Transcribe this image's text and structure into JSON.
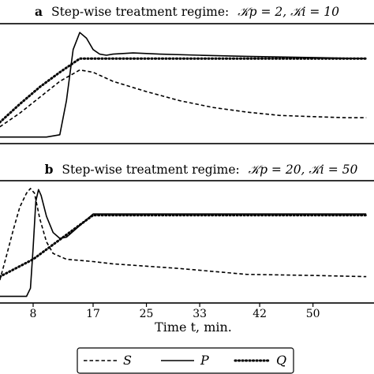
{
  "chart_data": [
    {
      "type": "line",
      "panel": "a",
      "title_prefix": "Step-wise treatment regime:",
      "title_params": "𝒦p = 2, 𝒦i = 10",
      "xlim": [
        3,
        58
      ],
      "ylim": [
        0,
        1
      ],
      "series": [
        {
          "name": "S",
          "style": "dashed",
          "x": [
            3,
            6,
            9,
            12,
            15,
            17,
            20,
            25,
            30,
            35,
            40,
            45,
            50,
            55,
            58
          ],
          "y": [
            0.12,
            0.24,
            0.38,
            0.52,
            0.62,
            0.6,
            0.52,
            0.43,
            0.35,
            0.29,
            0.25,
            0.22,
            0.21,
            0.2,
            0.2
          ]
        },
        {
          "name": "P",
          "style": "solid",
          "x": [
            3,
            10,
            12,
            13,
            14,
            15,
            16,
            17,
            18,
            19,
            20,
            23,
            27,
            33,
            40,
            50,
            58
          ],
          "y": [
            0.03,
            0.03,
            0.05,
            0.35,
            0.8,
            0.95,
            0.9,
            0.8,
            0.76,
            0.75,
            0.76,
            0.77,
            0.76,
            0.75,
            0.74,
            0.73,
            0.72
          ]
        },
        {
          "name": "Q",
          "style": "dotted",
          "x": [
            3,
            6,
            9,
            12,
            15,
            17,
            20,
            30,
            40,
            50,
            58
          ],
          "y": [
            0.16,
            0.32,
            0.47,
            0.6,
            0.72,
            0.72,
            0.72,
            0.72,
            0.72,
            0.72,
            0.72
          ]
        }
      ]
    },
    {
      "type": "line",
      "panel": "b",
      "title_prefix": "Step-wise treatment regime:",
      "title_params": "𝒦p = 20, 𝒦i = 50",
      "xlabel": "Time t, min.",
      "xticks": [
        8,
        17,
        25,
        33,
        42,
        50
      ],
      "xlim": [
        3,
        58
      ],
      "ylim": [
        0,
        1
      ],
      "series": [
        {
          "name": "S",
          "style": "dashed",
          "x": [
            3,
            4,
            5,
            6,
            7,
            7.6,
            8.2,
            9,
            10,
            11,
            13,
            17,
            20,
            30,
            40,
            50,
            58
          ],
          "y": [
            0.17,
            0.38,
            0.6,
            0.8,
            0.92,
            0.96,
            0.92,
            0.7,
            0.5,
            0.4,
            0.35,
            0.33,
            0.31,
            0.27,
            0.22,
            0.21,
            0.2
          ]
        },
        {
          "name": "P",
          "style": "solid",
          "x": [
            3,
            7,
            7.6,
            8,
            8.4,
            8.8,
            9.2,
            10,
            11,
            12,
            13,
            15,
            17,
            20,
            30,
            40,
            50,
            58
          ],
          "y": [
            0.03,
            0.03,
            0.1,
            0.45,
            0.85,
            0.95,
            0.9,
            0.72,
            0.58,
            0.53,
            0.54,
            0.64,
            0.74,
            0.74,
            0.74,
            0.74,
            0.74,
            0.74
          ]
        },
        {
          "name": "Q",
          "style": "dotted",
          "x": [
            3,
            8,
            17,
            20,
            30,
            40,
            50,
            58
          ],
          "y": [
            0.2,
            0.35,
            0.73,
            0.73,
            0.73,
            0.73,
            0.73,
            0.73
          ]
        }
      ]
    }
  ],
  "legend": [
    "S",
    "P",
    "Q"
  ]
}
